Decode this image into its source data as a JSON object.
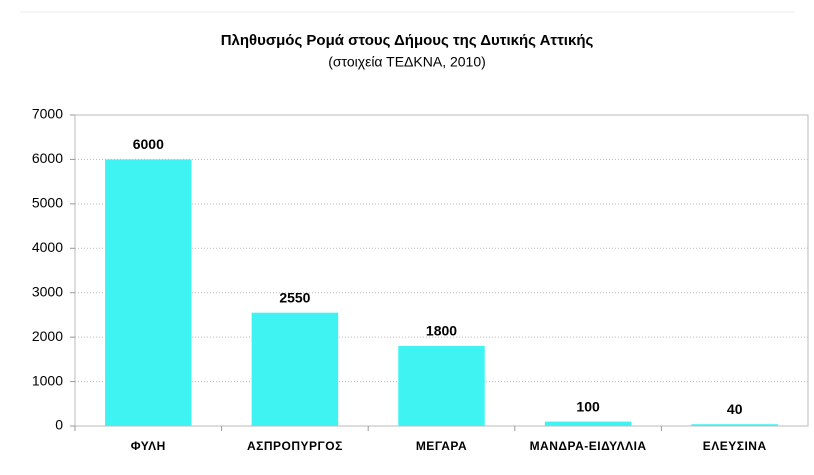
{
  "chart_data": {
    "type": "bar",
    "title": "Πληθυσμός Ρομά στους Δήμους της Δυτικής Αττικής",
    "subtitle": "(στοιχεία ΤΕΔΚΝΑ, 2010)",
    "categories": [
      "ΦΥΛΗ",
      "ΑΣΠΡΟΠΥΡΓΟΣ",
      "ΜΕΓΑΡΑ",
      "ΜΑΝΔΡΑ-ΕΙΔΥΛΛΙΑ",
      "ΕΛΕΥΣΙΝΑ"
    ],
    "values": [
      6000,
      2550,
      1800,
      100,
      40
    ],
    "color": "#3ff3f3",
    "ylim": [
      0,
      7000
    ],
    "yticks": [
      0,
      1000,
      2000,
      3000,
      4000,
      5000,
      6000,
      7000
    ],
    "grid": true
  }
}
